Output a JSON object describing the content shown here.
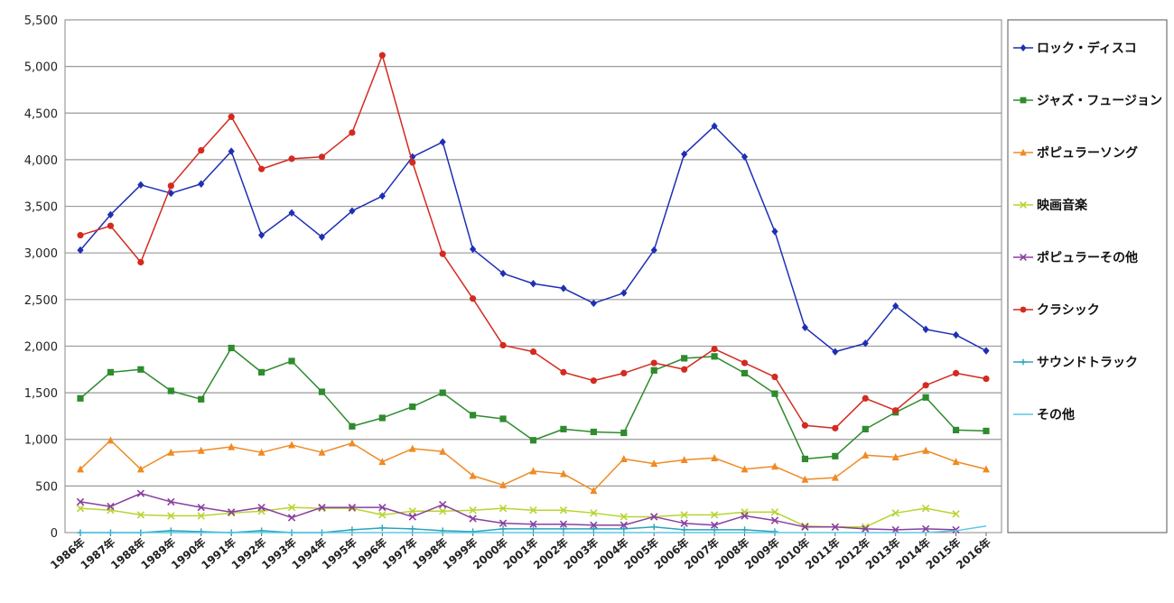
{
  "chart_data": {
    "type": "line",
    "title": "",
    "xlabel": "",
    "ylabel": "",
    "ylim": [
      0,
      5500
    ],
    "y_ticks": [
      "0",
      "500",
      "1,000",
      "1,500",
      "2,000",
      "2,500",
      "3,000",
      "3,500",
      "4,000",
      "4,500",
      "5,000",
      "5,500"
    ],
    "y_tick_values": [
      0,
      500,
      1000,
      1500,
      2000,
      2500,
      3000,
      3500,
      4000,
      4500,
      5000,
      5500
    ],
    "grid": true,
    "legend_position": "right",
    "categories": [
      "1986年",
      "1987年",
      "1988年",
      "1989年",
      "1990年",
      "1991年",
      "1992年",
      "1993年",
      "1994年",
      "1995年",
      "1996年",
      "1997年",
      "1998年",
      "1999年",
      "2000年",
      "2001年",
      "2002年",
      "2003年",
      "2004年",
      "2005年",
      "2006年",
      "2007年",
      "2008年",
      "2009年",
      "2010年",
      "2011年",
      "2012年",
      "2013年",
      "2014年",
      "2015年",
      "2016年"
    ],
    "series": [
      {
        "name": "ロック・ディスコ",
        "color": "#1f2fb4",
        "marker": "diamond",
        "values": [
          3030,
          3410,
          3730,
          3640,
          3740,
          4090,
          3190,
          3430,
          3170,
          3450,
          3610,
          4030,
          4190,
          3040,
          2780,
          2670,
          2620,
          2460,
          2570,
          3030,
          4060,
          4360,
          4030,
          3230,
          2200,
          1940,
          2030,
          2430,
          2180,
          2120,
          1950
        ]
      },
      {
        "name": "ジャズ・フュージョン",
        "color": "#2e8b2e",
        "marker": "square",
        "values": [
          1440,
          1720,
          1750,
          1520,
          1430,
          1980,
          1720,
          1840,
          1510,
          1140,
          1230,
          1350,
          1500,
          1260,
          1220,
          990,
          1110,
          1080,
          1070,
          1740,
          1870,
          1890,
          1710,
          1490,
          790,
          820,
          1110,
          1290,
          1450,
          1100,
          1090
        ]
      },
      {
        "name": "ポピュラーソング",
        "color": "#f08a24",
        "marker": "triangle",
        "values": [
          680,
          990,
          680,
          860,
          880,
          920,
          860,
          940,
          860,
          960,
          760,
          900,
          870,
          610,
          510,
          660,
          630,
          450,
          790,
          740,
          780,
          800,
          680,
          710,
          570,
          590,
          830,
          810,
          880,
          760,
          680
        ]
      },
      {
        "name": "映画音楽",
        "color": "#b8d432",
        "marker": "cross",
        "values": [
          260,
          240,
          190,
          180,
          180,
          210,
          230,
          270,
          260,
          260,
          190,
          230,
          230,
          240,
          260,
          240,
          240,
          210,
          170,
          170,
          190,
          190,
          220,
          220,
          70,
          60,
          60,
          210,
          260,
          200,
          null
        ]
      },
      {
        "name": "ポピュラーその他",
        "color": "#8a3fa0",
        "marker": "x",
        "values": [
          330,
          280,
          420,
          330,
          270,
          220,
          270,
          160,
          270,
          270,
          270,
          170,
          300,
          150,
          100,
          90,
          90,
          80,
          80,
          170,
          100,
          80,
          180,
          130,
          60,
          60,
          40,
          30,
          40,
          30,
          null
        ]
      },
      {
        "name": "クラシック",
        "color": "#d42a20",
        "marker": "circle",
        "values": [
          3190,
          3290,
          2900,
          3720,
          4100,
          4460,
          3900,
          4010,
          4030,
          4290,
          5120,
          3970,
          2990,
          2510,
          2010,
          1940,
          1720,
          1630,
          1710,
          1820,
          1750,
          1970,
          1820,
          1670,
          1150,
          1120,
          1440,
          1310,
          1580,
          1710,
          1650
        ]
      },
      {
        "name": "サウンドトラック",
        "color": "#2aa5b8",
        "marker": "plus",
        "values": [
          0,
          0,
          0,
          20,
          10,
          0,
          20,
          0,
          0,
          30,
          50,
          40,
          20,
          10,
          40,
          40,
          40,
          40,
          40,
          60,
          30,
          30,
          30,
          10,
          null,
          null,
          null,
          null,
          null,
          null,
          null
        ]
      },
      {
        "name": "その他",
        "color": "#5ac8e6",
        "marker": "none",
        "values": [
          0,
          0,
          0,
          0,
          0,
          0,
          0,
          0,
          0,
          0,
          0,
          0,
          0,
          0,
          0,
          0,
          0,
          0,
          0,
          0,
          0,
          0,
          0,
          0,
          0,
          0,
          0,
          0,
          0,
          20,
          70
        ]
      }
    ]
  }
}
